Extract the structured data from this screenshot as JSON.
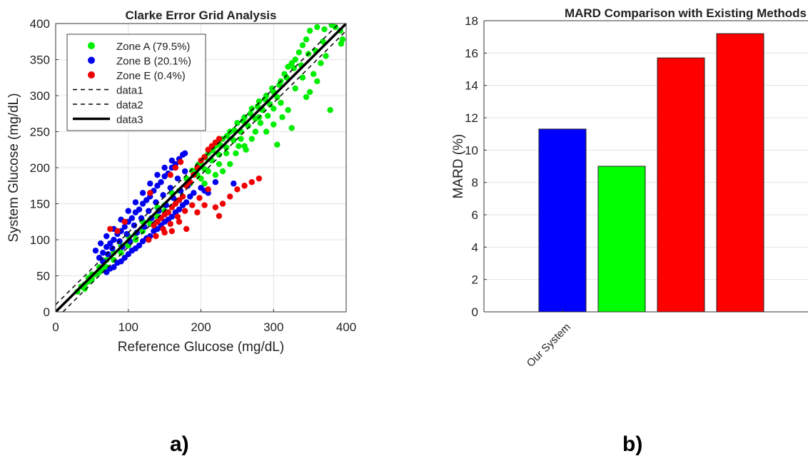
{
  "panel_labels": [
    "a)",
    "b)"
  ],
  "chart_data": [
    {
      "type": "scatter",
      "title": "Clarke Error Grid Analysis",
      "xlabel": "Reference Glucose (mg/dL)",
      "ylabel": "System Glucose (mg/dL)",
      "xlim": [
        0,
        400
      ],
      "ylim": [
        0,
        400
      ],
      "xticks": [
        0,
        100,
        200,
        300,
        400
      ],
      "yticks": [
        0,
        50,
        100,
        150,
        200,
        250,
        300,
        350,
        400
      ],
      "grid": true,
      "legend_position": "top-left",
      "series": [
        {
          "name": "Zone A (79.5%)",
          "color": "#00ee00",
          "points": [
            [
              30,
              28
            ],
            [
              40,
              38
            ],
            [
              45,
              47
            ],
            [
              50,
              52
            ],
            [
              55,
              52
            ],
            [
              60,
              62
            ],
            [
              65,
              60
            ],
            [
              70,
              72
            ],
            [
              80,
              82
            ],
            [
              90,
              92
            ],
            [
              100,
              105
            ],
            [
              110,
              108
            ],
            [
              120,
              125
            ],
            [
              130,
              128
            ],
            [
              140,
              145
            ],
            [
              150,
              148
            ],
            [
              160,
              165
            ],
            [
              170,
              168
            ],
            [
              180,
              185
            ],
            [
              185,
              178
            ],
            [
              190,
              195
            ],
            [
              195,
              190
            ],
            [
              200,
              205
            ],
            [
              205,
              198
            ],
            [
              210,
              220
            ],
            [
              215,
              210
            ],
            [
              220,
              230
            ],
            [
              225,
              218
            ],
            [
              230,
              240
            ],
            [
              235,
              228
            ],
            [
              240,
              250
            ],
            [
              245,
              238
            ],
            [
              250,
              262
            ],
            [
              255,
              250
            ],
            [
              260,
              270
            ],
            [
              265,
              258
            ],
            [
              270,
              282
            ],
            [
              275,
              268
            ],
            [
              280,
              292
            ],
            [
              285,
              280
            ],
            [
              290,
              300
            ],
            [
              295,
              288
            ],
            [
              300,
              305
            ],
            [
              305,
              298
            ],
            [
              310,
              320
            ],
            [
              315,
              330
            ],
            [
              320,
              340
            ],
            [
              325,
              345
            ],
            [
              330,
              350
            ],
            [
              335,
              360
            ],
            [
              340,
              370
            ],
            [
              345,
              378
            ],
            [
              350,
              390
            ],
            [
              360,
              395
            ],
            [
              370,
              392
            ],
            [
              380,
              398
            ],
            [
              385,
              395
            ],
            [
              392,
              390
            ],
            [
              395,
              378
            ],
            [
              393,
              372
            ],
            [
              378,
              280
            ],
            [
              360,
              320
            ],
            [
              350,
              305
            ],
            [
              340,
              325
            ],
            [
              330,
              310
            ],
            [
              320,
              280
            ],
            [
              310,
              290
            ],
            [
              300,
              260
            ],
            [
              290,
              250
            ],
            [
              280,
              270
            ],
            [
              270,
              240
            ],
            [
              260,
              230
            ],
            [
              255,
              240
            ],
            [
              248,
              220
            ],
            [
              240,
              205
            ],
            [
              235,
              220
            ],
            [
              230,
              195
            ],
            [
              225,
              205
            ],
            [
              220,
              190
            ],
            [
              210,
              195
            ],
            [
              205,
              178
            ],
            [
              200,
              185
            ],
            [
              252,
              230
            ],
            [
              262,
              225
            ],
            [
              275,
              250
            ],
            [
              282,
              262
            ],
            [
              292,
              272
            ],
            [
              300,
              282
            ],
            [
              305,
              232
            ],
            [
              312,
              270
            ],
            [
              325,
              255
            ],
            [
              345,
              298
            ],
            [
              355,
              330
            ],
            [
              365,
              345
            ],
            [
              372,
              355
            ],
            [
              368,
              375
            ],
            [
              358,
              362
            ],
            [
              348,
              358
            ],
            [
              338,
              342
            ],
            [
              328,
              338
            ],
            [
              318,
              325
            ],
            [
              308,
              315
            ],
            [
              298,
              310
            ],
            [
              288,
              295
            ],
            [
              278,
              285
            ],
            [
              268,
              275
            ],
            [
              258,
              265
            ],
            [
              246,
              252
            ],
            [
              236,
              244
            ],
            [
              226,
              232
            ],
            [
              216,
              224
            ],
            [
              206,
              214
            ],
            [
              196,
              204
            ],
            [
              188,
              196
            ],
            [
              150,
              140
            ],
            [
              140,
              132
            ],
            [
              130,
              122
            ],
            [
              120,
              112
            ],
            [
              110,
              100
            ],
            [
              100,
              92
            ],
            [
              90,
              82
            ],
            [
              80,
              72
            ],
            [
              70,
              62
            ],
            [
              60,
              55
            ],
            [
              50,
              45
            ],
            [
              45,
              42
            ],
            [
              40,
              32
            ],
            [
              35,
              35
            ]
          ]
        },
        {
          "name": "Zone B (20.1%)",
          "color": "#0000ee",
          "points": [
            [
              60,
              75
            ],
            [
              65,
              82
            ],
            [
              70,
              90
            ],
            [
              75,
              95
            ],
            [
              80,
              100
            ],
            [
              85,
              108
            ],
            [
              90,
              112
            ],
            [
              95,
              118
            ],
            [
              100,
              125
            ],
            [
              105,
              130
            ],
            [
              110,
              138
            ],
            [
              115,
              142
            ],
            [
              120,
              150
            ],
            [
              125,
              155
            ],
            [
              130,
              160
            ],
            [
              135,
              168
            ],
            [
              140,
              175
            ],
            [
              145,
              180
            ],
            [
              150,
              188
            ],
            [
              155,
              192
            ],
            [
              160,
              200
            ],
            [
              165,
              205
            ],
            [
              170,
              212
            ],
            [
              175,
              218
            ],
            [
              178,
              220
            ],
            [
              70,
              55
            ],
            [
              75,
              60
            ],
            [
              80,
              62
            ],
            [
              85,
              68
            ],
            [
              90,
              70
            ],
            [
              95,
              75
            ],
            [
              100,
              80
            ],
            [
              105,
              85
            ],
            [
              110,
              88
            ],
            [
              115,
              92
            ],
            [
              120,
              98
            ],
            [
              125,
              102
            ],
            [
              130,
              105
            ],
            [
              135,
              112
            ],
            [
              140,
              115
            ],
            [
              145,
              120
            ],
            [
              150,
              125
            ],
            [
              155,
              128
            ],
            [
              160,
              132
            ],
            [
              165,
              138
            ],
            [
              170,
              142
            ],
            [
              175,
              148
            ],
            [
              180,
              152
            ],
            [
              185,
              160
            ],
            [
              190,
              165
            ],
            [
              200,
              172
            ],
            [
              205,
              168
            ],
            [
              210,
              165
            ],
            [
              245,
              178
            ],
            [
              220,
              180
            ],
            [
              65,
              70
            ],
            [
              72,
              80
            ],
            [
              78,
              88
            ],
            [
              88,
              98
            ],
            [
              98,
              108
            ],
            [
              108,
              120
            ],
            [
              118,
              130
            ],
            [
              128,
              140
            ],
            [
              138,
              152
            ],
            [
              148,
              162
            ],
            [
              158,
              172
            ],
            [
              168,
              185
            ],
            [
              178,
              195
            ],
            [
              92,
              90
            ],
            [
              102,
              98
            ],
            [
              112,
              110
            ],
            [
              122,
              118
            ],
            [
              132,
              130
            ],
            [
              142,
              140
            ],
            [
              152,
              148
            ],
            [
              162,
              158
            ],
            [
              172,
              168
            ],
            [
              182,
              175
            ],
            [
              160,
              210
            ],
            [
              150,
              200
            ],
            [
              140,
              190
            ],
            [
              130,
              178
            ],
            [
              120,
              165
            ],
            [
              110,
              152
            ],
            [
              100,
              140
            ],
            [
              90,
              128
            ],
            [
              80,
              115
            ],
            [
              70,
              105
            ],
            [
              62,
              95
            ],
            [
              55,
              85
            ]
          ]
        },
        {
          "name": "Zone E (0.4%)",
          "color": "#ee0000",
          "points": [
            [
              135,
              120
            ],
            [
              140,
              125
            ],
            [
              145,
              130
            ],
            [
              150,
              135
            ],
            [
              155,
              138
            ],
            [
              160,
              145
            ],
            [
              165,
              150
            ],
            [
              170,
              155
            ],
            [
              175,
              160
            ],
            [
              180,
              175
            ],
            [
              185,
              180
            ],
            [
              190,
              190
            ],
            [
              195,
              200
            ],
            [
              200,
              210
            ],
            [
              205,
              215
            ],
            [
              210,
              225
            ],
            [
              215,
              230
            ],
            [
              220,
              235
            ],
            [
              225,
              240
            ],
            [
              130,
              165
            ],
            [
              150,
              110
            ],
            [
              160,
              112
            ],
            [
              170,
              125
            ],
            [
              180,
              115
            ],
            [
              195,
              138
            ],
            [
              205,
              148
            ],
            [
              225,
              133
            ],
            [
              85,
              112
            ],
            [
              95,
              125
            ],
            [
              75,
              115
            ],
            [
              128,
              100
            ],
            [
              138,
              105
            ],
            [
              148,
              115
            ],
            [
              158,
              122
            ],
            [
              168,
              132
            ],
            [
              178,
              140
            ],
            [
              188,
              148
            ],
            [
              198,
              158
            ],
            [
              210,
              170
            ],
            [
              220,
              145
            ],
            [
              230,
              150
            ],
            [
              240,
              160
            ],
            [
              250,
              170
            ],
            [
              260,
              175
            ],
            [
              270,
              180
            ],
            [
              280,
              185
            ],
            [
              158,
              190
            ],
            [
              165,
              200
            ],
            [
              172,
              208
            ]
          ]
        }
      ],
      "lines": [
        {
          "name": "data1",
          "style": "dashed",
          "points": [
            [
              0,
              10
            ],
            [
              400,
              410
            ]
          ]
        },
        {
          "name": "data2",
          "style": "dashed",
          "points": [
            [
              10,
              0
            ],
            [
              400,
              390
            ]
          ]
        },
        {
          "name": "data3",
          "style": "solid",
          "points": [
            [
              0,
              0
            ],
            [
              400,
              400
            ]
          ]
        }
      ]
    },
    {
      "type": "bar",
      "title": "MARD Comparison with Existing Methods",
      "xlabel": "",
      "ylabel": "MARD (%)",
      "ylim": [
        0,
        18
      ],
      "yticks": [
        0,
        2,
        4,
        6,
        8,
        10,
        12,
        14,
        16,
        18
      ],
      "grid": true,
      "categories": [
        "Our System",
        "",
        "",
        ""
      ],
      "values": [
        11.3,
        9.0,
        15.7,
        17.2
      ],
      "colors": [
        "#0000ff",
        "#00ff00",
        "#ff0000",
        "#ff0000"
      ]
    }
  ]
}
